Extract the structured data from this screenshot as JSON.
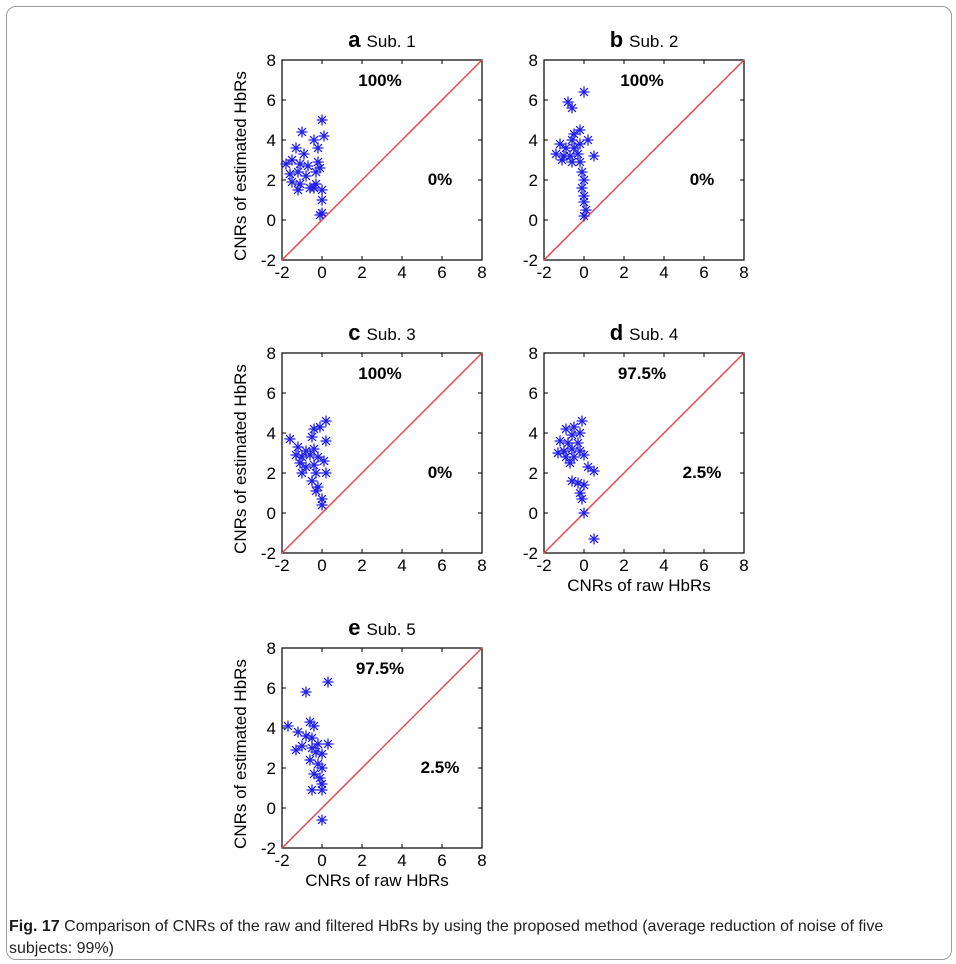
{
  "caption": {
    "label": "Fig. 17",
    "text": "Comparison of CNRs of the raw and filtered HbRs by using the proposed method (average reduction of noise of five subjects: 99%)"
  },
  "colors": {
    "marker": "#1f1fe6",
    "diagonal": "#e8474f"
  },
  "chart_data": [
    {
      "panel": "a",
      "title": "Sub. 1",
      "type": "scatter",
      "xlabel": "",
      "ylabel": "CNRs of estimated HbRs",
      "xlim": [
        -2,
        8
      ],
      "ylim": [
        -2,
        8
      ],
      "xticks": [
        "-2",
        "0",
        "2",
        "4",
        "6",
        "8"
      ],
      "yticks": [
        "-2",
        "0",
        "2",
        "4",
        "6",
        "8"
      ],
      "diagonal": true,
      "annotations": {
        "above": "100%",
        "below": "0%"
      },
      "points": [
        [
          0,
          5
        ],
        [
          0.1,
          4.2
        ],
        [
          -1,
          4.4
        ],
        [
          -0.4,
          4
        ],
        [
          -1.3,
          3.6
        ],
        [
          -0.9,
          3.3
        ],
        [
          -0.2,
          3.6
        ],
        [
          -1.8,
          2.8
        ],
        [
          -1.5,
          3
        ],
        [
          -1.1,
          2.8
        ],
        [
          -0.7,
          2.7
        ],
        [
          -0.2,
          2.9
        ],
        [
          -1.6,
          2.3
        ],
        [
          -1.2,
          2.4
        ],
        [
          -0.8,
          2.2
        ],
        [
          -0.3,
          2.4
        ],
        [
          -0.1,
          2.6
        ],
        [
          -1.5,
          1.9
        ],
        [
          -1.1,
          1.8
        ],
        [
          -0.6,
          1.6
        ],
        [
          -0.3,
          1.8
        ],
        [
          0,
          1.5
        ],
        [
          -1.2,
          1.5
        ],
        [
          -0.4,
          1.6
        ],
        [
          0,
          1
        ],
        [
          0,
          0.35
        ],
        [
          -0.1,
          0.25
        ]
      ]
    },
    {
      "panel": "b",
      "title": "Sub. 2",
      "type": "scatter",
      "xlabel": "",
      "ylabel": "",
      "xlim": [
        -2,
        8
      ],
      "ylim": [
        -2,
        8
      ],
      "xticks": [
        "-2",
        "0",
        "2",
        "4",
        "6",
        "8"
      ],
      "yticks": [
        "-2",
        "0",
        "2",
        "4",
        "6",
        "8"
      ],
      "diagonal": true,
      "annotations": {
        "above": "100%",
        "below": "0%"
      },
      "points": [
        [
          0,
          6.4
        ],
        [
          -0.8,
          5.9
        ],
        [
          -0.6,
          5.6
        ],
        [
          -0.5,
          4.3
        ],
        [
          -0.2,
          4.5
        ],
        [
          -0.6,
          4
        ],
        [
          0.2,
          4
        ],
        [
          -1.2,
          3.8
        ],
        [
          -0.9,
          3.6
        ],
        [
          -0.5,
          3.6
        ],
        [
          -0.2,
          3.8
        ],
        [
          -1.4,
          3.3
        ],
        [
          -1,
          3.2
        ],
        [
          -0.7,
          3.2
        ],
        [
          -0.3,
          3.3
        ],
        [
          0.5,
          3.2
        ],
        [
          -1.1,
          3
        ],
        [
          -0.6,
          2.9
        ],
        [
          -0.2,
          2.9
        ],
        [
          -0.1,
          2.4
        ],
        [
          0,
          2
        ],
        [
          -0.1,
          1.6
        ],
        [
          0,
          1.2
        ],
        [
          0,
          0.9
        ],
        [
          0.1,
          0.5
        ],
        [
          0,
          0.2
        ]
      ]
    },
    {
      "panel": "c",
      "title": "Sub. 3",
      "type": "scatter",
      "xlabel": "",
      "ylabel": "CNRs of estimated HbRs",
      "xlim": [
        -2,
        8
      ],
      "ylim": [
        -2,
        8
      ],
      "xticks": [
        "-2",
        "0",
        "2",
        "4",
        "6",
        "8"
      ],
      "yticks": [
        "-2",
        "0",
        "2",
        "4",
        "6",
        "8"
      ],
      "diagonal": true,
      "annotations": {
        "above": "100%",
        "below": "0%"
      },
      "points": [
        [
          0.2,
          4.6
        ],
        [
          -0.4,
          4.2
        ],
        [
          -0.1,
          4.3
        ],
        [
          -1.6,
          3.7
        ],
        [
          -0.5,
          3.8
        ],
        [
          0.2,
          3.6
        ],
        [
          -1.2,
          3.3
        ],
        [
          -0.8,
          3.1
        ],
        [
          -0.4,
          3.2
        ],
        [
          -1.3,
          2.9
        ],
        [
          -1,
          2.8
        ],
        [
          -0.6,
          2.9
        ],
        [
          -0.2,
          2.8
        ],
        [
          0.1,
          2.6
        ],
        [
          -1.1,
          2.5
        ],
        [
          -0.8,
          2.3
        ],
        [
          -0.4,
          2.4
        ],
        [
          -1,
          2
        ],
        [
          -0.3,
          2
        ],
        [
          0.2,
          2
        ],
        [
          -0.5,
          1.6
        ],
        [
          -0.2,
          1.3
        ],
        [
          -0.3,
          1.1
        ],
        [
          0,
          0.7
        ],
        [
          0,
          0.4
        ]
      ]
    },
    {
      "panel": "d",
      "title": "Sub. 4",
      "type": "scatter",
      "xlabel": "CNRs of raw HbRs",
      "ylabel": "",
      "xlim": [
        -2,
        8
      ],
      "ylim": [
        -2,
        8
      ],
      "xticks": [
        "-2",
        "0",
        "2",
        "4",
        "6",
        "8"
      ],
      "yticks": [
        "-2",
        "0",
        "2",
        "4",
        "6",
        "8"
      ],
      "diagonal": true,
      "annotations": {
        "above": "97.5%",
        "below": "2.5%"
      },
      "points": [
        [
          -0.1,
          4.6
        ],
        [
          -0.5,
          4.3
        ],
        [
          -0.9,
          4.2
        ],
        [
          -0.2,
          4
        ],
        [
          -0.6,
          3.9
        ],
        [
          -1.2,
          3.6
        ],
        [
          -0.8,
          3.5
        ],
        [
          -0.3,
          3.5
        ],
        [
          -1.3,
          3
        ],
        [
          -1,
          3.1
        ],
        [
          -0.6,
          3.2
        ],
        [
          -0.2,
          3.1
        ],
        [
          -0.9,
          2.8
        ],
        [
          -0.5,
          2.8
        ],
        [
          0,
          2.9
        ],
        [
          -0.7,
          2.5
        ],
        [
          0.2,
          2.3
        ],
        [
          0.5,
          2.1
        ],
        [
          -0.6,
          1.6
        ],
        [
          -0.3,
          1.5
        ],
        [
          0,
          1.4
        ],
        [
          -0.2,
          1
        ],
        [
          -0.1,
          0.7
        ],
        [
          0,
          0
        ],
        [
          0.5,
          -1.3
        ]
      ]
    },
    {
      "panel": "e",
      "title": "Sub. 5",
      "type": "scatter",
      "xlabel": "CNRs of raw HbRs",
      "ylabel": "CNRs of estimated HbRs",
      "xlim": [
        -2,
        8
      ],
      "ylim": [
        -2,
        8
      ],
      "xticks": [
        "-2",
        "0",
        "2",
        "4",
        "6",
        "8"
      ],
      "yticks": [
        "-2",
        "0",
        "2",
        "4",
        "6",
        "8"
      ],
      "diagonal": true,
      "annotations": {
        "above": "97.5%",
        "below": "2.5%"
      },
      "points": [
        [
          0.3,
          6.3
        ],
        [
          -0.8,
          5.8
        ],
        [
          -0.6,
          4.3
        ],
        [
          -0.4,
          4.1
        ],
        [
          -1.7,
          4.1
        ],
        [
          -1.2,
          3.8
        ],
        [
          -0.8,
          3.6
        ],
        [
          -0.5,
          3.5
        ],
        [
          -1,
          3.1
        ],
        [
          -1.3,
          2.9
        ],
        [
          -0.5,
          3
        ],
        [
          -0.2,
          3.2
        ],
        [
          0.3,
          3.2
        ],
        [
          -0.3,
          2.8
        ],
        [
          0,
          2.7
        ],
        [
          -0.6,
          2.4
        ],
        [
          -0.2,
          2.2
        ],
        [
          0,
          2
        ],
        [
          -0.4,
          1.7
        ],
        [
          -0.1,
          1.5
        ],
        [
          0,
          1.2
        ],
        [
          -0.5,
          0.9
        ],
        [
          0,
          0.9
        ],
        [
          0,
          -0.6
        ]
      ]
    }
  ]
}
